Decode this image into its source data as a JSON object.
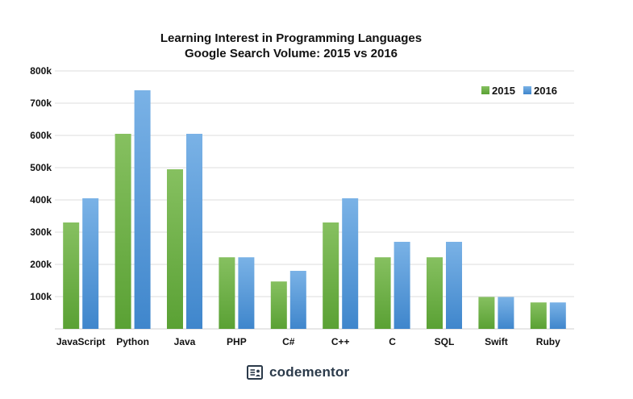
{
  "chart_data": {
    "type": "bar",
    "title": "Learning Interest in Programming Languages",
    "subtitle": "Google Search Volume: 2015 vs 2016",
    "categories": [
      "JavaScript",
      "Python",
      "Java",
      "PHP",
      "C#",
      "C++",
      "C",
      "SQL",
      "Swift",
      "Ruby"
    ],
    "series": [
      {
        "name": "2015",
        "values": [
          330000,
          605000,
          495000,
          222000,
          147000,
          330000,
          222000,
          222000,
          99000,
          82000
        ],
        "color": "#6aac47"
      },
      {
        "name": "2016",
        "values": [
          405000,
          740000,
          605000,
          222000,
          180000,
          405000,
          270000,
          270000,
          99000,
          82000
        ],
        "color": "#5a9bd8"
      }
    ],
    "ylim": [
      0,
      800000
    ],
    "yticks": [
      {
        "value": 100000,
        "label": "100k"
      },
      {
        "value": 200000,
        "label": "200k"
      },
      {
        "value": 300000,
        "label": "300k"
      },
      {
        "value": 400000,
        "label": "400k"
      },
      {
        "value": 500000,
        "label": "500k"
      },
      {
        "value": 600000,
        "label": "600k"
      },
      {
        "value": 700000,
        "label": "700k"
      },
      {
        "value": 800000,
        "label": "800k"
      }
    ],
    "xlabel": "",
    "ylabel": "",
    "grid": true,
    "legend_position": "top-right"
  },
  "footer": {
    "brand_name": "codementor",
    "brand_icon": "codementor-logo-icon"
  }
}
